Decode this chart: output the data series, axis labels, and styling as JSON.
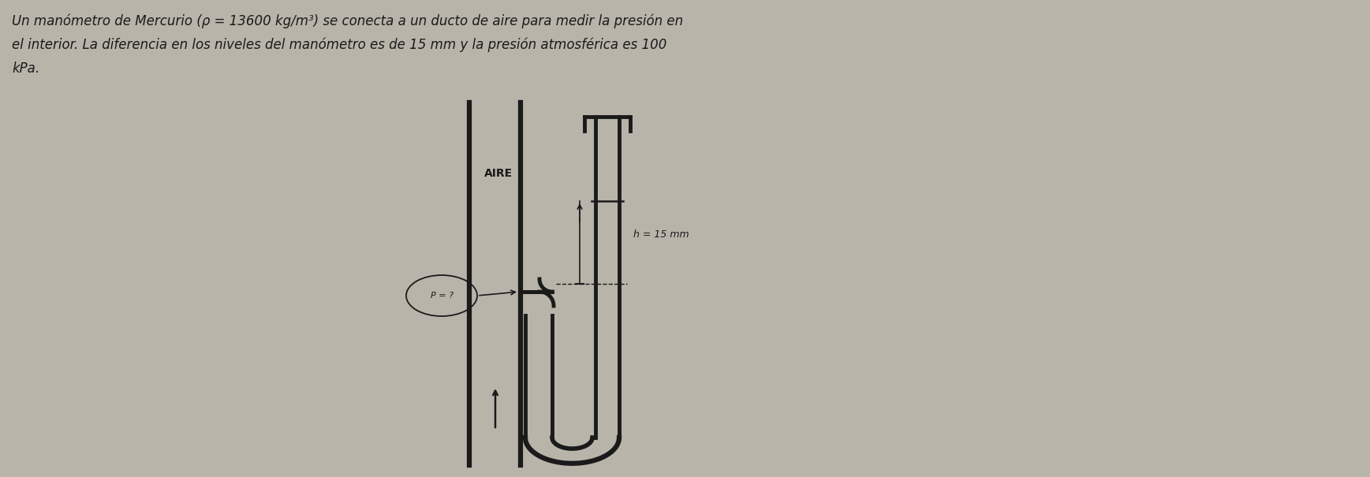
{
  "bg_color": "#b8b4aa",
  "text_color": "#1a1a1a",
  "title_line1": "Un manómetro de Mercurio (ρ = 13600 kg/m³) se conecta a un ducto de aire para medir la presión en",
  "title_line2": "el interior. La diferencia en los niveles del manómetro es de 15 mm y la presión atmosférica es 100",
  "title_line3": "kPa.",
  "label_aire": "AIRE",
  "label_pressure": "P = ?",
  "label_h": "h = 15 mm",
  "line_width": 3.5,
  "font_size_title": 12,
  "font_size_label": 9
}
